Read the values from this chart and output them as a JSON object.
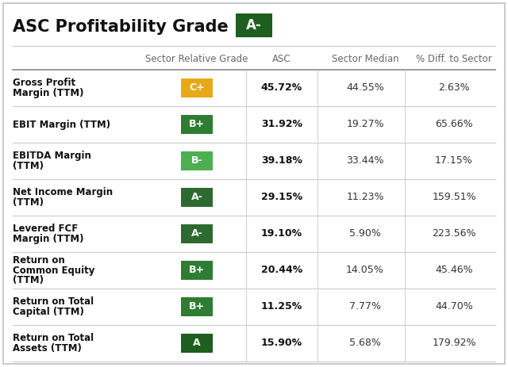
{
  "title": "ASC Profitability Grade",
  "title_grade": "A-",
  "title_grade_color": "#1e5e1e",
  "header_cols": [
    "Sector Relative Grade",
    "ASC",
    "Sector Median",
    "% Diff. to Sector"
  ],
  "rows": [
    {
      "metric": "Gross Profit\nMargin (TTM)",
      "grade": "C+",
      "grade_color": "#e8a917",
      "asc": "45.72%",
      "sector_median": "44.55%",
      "pct_diff": "2.63%"
    },
    {
      "metric": "EBIT Margin (TTM)",
      "grade": "B+",
      "grade_color": "#2e7d32",
      "asc": "31.92%",
      "sector_median": "19.27%",
      "pct_diff": "65.66%"
    },
    {
      "metric": "EBITDA Margin\n(TTM)",
      "grade": "B-",
      "grade_color": "#4caf50",
      "asc": "39.18%",
      "sector_median": "33.44%",
      "pct_diff": "17.15%"
    },
    {
      "metric": "Net Income Margin\n(TTM)",
      "grade": "A-",
      "grade_color": "#2d6a30",
      "asc": "29.15%",
      "sector_median": "11.23%",
      "pct_diff": "159.51%"
    },
    {
      "metric": "Levered FCF\nMargin (TTM)",
      "grade": "A-",
      "grade_color": "#2d6a30",
      "asc": "19.10%",
      "sector_median": "5.90%",
      "pct_diff": "223.56%"
    },
    {
      "metric": "Return on\nCommon Equity\n(TTM)",
      "grade": "B+",
      "grade_color": "#2e7d32",
      "asc": "20.44%",
      "sector_median": "14.05%",
      "pct_diff": "45.46%"
    },
    {
      "metric": "Return on Total\nCapital (TTM)",
      "grade": "B+",
      "grade_color": "#2e7d32",
      "asc": "11.25%",
      "sector_median": "7.77%",
      "pct_diff": "44.70%"
    },
    {
      "metric": "Return on Total\nAssets (TTM)",
      "grade": "A",
      "grade_color": "#1e5e1e",
      "asc": "15.90%",
      "sector_median": "5.68%",
      "pct_diff": "179.92%"
    }
  ],
  "fig_w": 6.4,
  "fig_h": 4.63,
  "dpi": 100,
  "bg_color": "#ffffff",
  "border_color": "#c0c0c0",
  "header_text_color": "#666666",
  "metric_text_color": "#111111",
  "data_text_color": "#333333",
  "grade_text_color": "#ffffff",
  "sep_color": "#d0d0d0",
  "header_sep_color": "#888888"
}
